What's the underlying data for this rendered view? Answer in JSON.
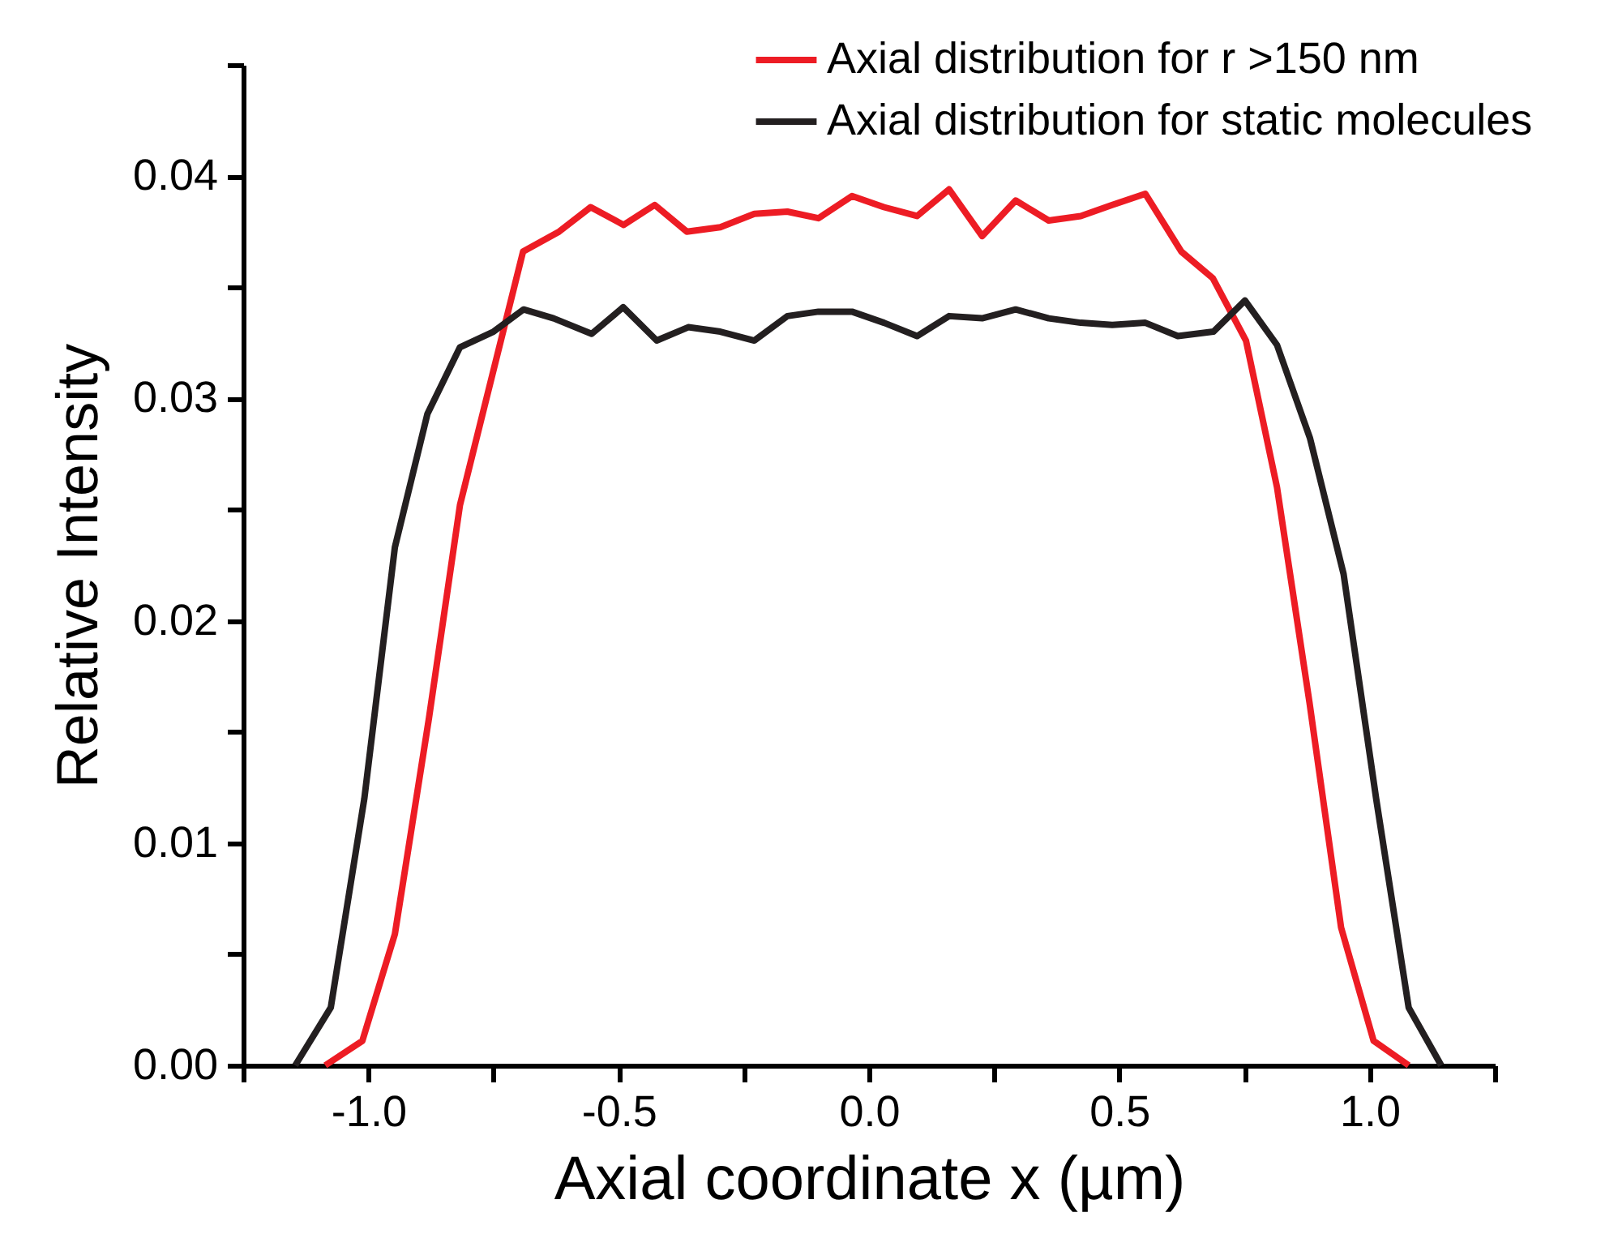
{
  "chart_data": {
    "type": "line",
    "xlabel": "Axial coordinate x (µm)",
    "ylabel": "Relative Intensity",
    "legend": "top right",
    "grid": false,
    "line_style": "solid",
    "marker": "none",
    "xlim": [
      -1.25,
      1.25
    ],
    "xticks": [
      {
        "value": -1.25,
        "label": null
      },
      {
        "value": -1.0,
        "label": "-1.0"
      },
      {
        "value": -0.75,
        "label": null
      },
      {
        "value": -0.5,
        "label": "-0.5"
      },
      {
        "value": -0.25,
        "label": null
      },
      {
        "value": 0,
        "label": "0.0"
      },
      {
        "value": 0.25,
        "label": null
      },
      {
        "value": 0.5,
        "label": "0.5"
      },
      {
        "value": 0.75,
        "label": null
      },
      {
        "value": 1.0,
        "label": "1.0"
      },
      {
        "value": 1.25,
        "label": null
      }
    ],
    "ylim": [
      0,
      0.045
    ],
    "yticks": [
      {
        "value": 0,
        "label": "0.00"
      },
      {
        "value": 0.005,
        "label": null
      },
      {
        "value": 0.01,
        "label": "0.01"
      },
      {
        "value": 0.015,
        "label": null
      },
      {
        "value": 0.02,
        "label": "0.02"
      },
      {
        "value": 0.025,
        "label": null
      },
      {
        "value": 0.03,
        "label": "0.03"
      },
      {
        "value": 0.035,
        "label": null
      },
      {
        "value": 0.04,
        "label": "0.04"
      },
      {
        "value": 0.045,
        "label": null
      }
    ],
    "series": [
      {
        "name": "Axial distribution for r >150 nm",
        "color": "#ed1c24",
        "x": [
          -1.086,
          -1.012,
          -0.947,
          -0.879,
          -0.817,
          -0.753,
          -0.691,
          -0.619,
          -0.556,
          -0.49,
          -0.428,
          -0.364,
          -0.297,
          -0.229,
          -0.163,
          -0.101,
          -0.034,
          0.03,
          0.096,
          0.16,
          0.226,
          0.293,
          0.359,
          0.423,
          0.486,
          0.552,
          0.624,
          0.687,
          0.753,
          0.815,
          0.88,
          0.943,
          1.008,
          1.078
        ],
        "values": [
          0,
          0.0011,
          0.0059,
          0.0156,
          0.0252,
          0.031,
          0.0366,
          0.0375,
          0.0386,
          0.0378,
          0.0387,
          0.0375,
          0.0377,
          0.0383,
          0.0384,
          0.0381,
          0.0391,
          0.0386,
          0.0382,
          0.0394,
          0.0373,
          0.0389,
          0.038,
          0.0382,
          0.0387,
          0.0392,
          0.0366,
          0.0354,
          0.0326,
          0.026,
          0.0163,
          0.0062,
          0.0011,
          0
        ]
      },
      {
        "name": "Axial distribution for static molecules",
        "color": "#231f20",
        "x": [
          -1.146,
          -1.075,
          -1.008,
          -0.947,
          -0.882,
          -0.817,
          -0.75,
          -0.69,
          -0.63,
          -0.554,
          -0.491,
          -0.424,
          -0.361,
          -0.297,
          -0.229,
          -0.163,
          -0.101,
          -0.034,
          0.03,
          0.096,
          0.16,
          0.226,
          0.293,
          0.359,
          0.423,
          0.486,
          0.552,
          0.617,
          0.688,
          0.751,
          0.815,
          0.881,
          0.948,
          1.013,
          1.078,
          1.143
        ],
        "values": [
          0,
          0.0026,
          0.012,
          0.0233,
          0.0293,
          0.0323,
          0.033,
          0.034,
          0.0336,
          0.0329,
          0.0341,
          0.0326,
          0.0332,
          0.033,
          0.0326,
          0.0337,
          0.0339,
          0.0339,
          0.0334,
          0.0328,
          0.0337,
          0.0336,
          0.034,
          0.0336,
          0.0334,
          0.0333,
          0.0334,
          0.0328,
          0.033,
          0.0344,
          0.0324,
          0.0282,
          0.0221,
          0.012,
          0.0026,
          0
        ]
      }
    ]
  }
}
